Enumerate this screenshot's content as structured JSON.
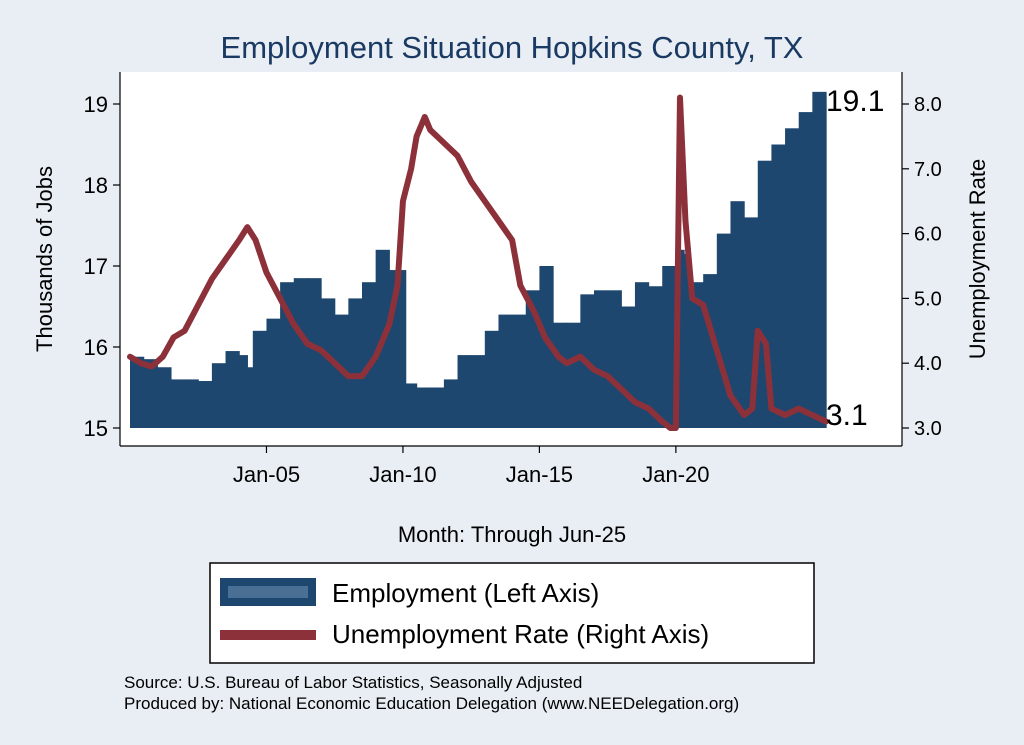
{
  "chart_data": {
    "type": "bar+line",
    "title": "Employment Situation Hopkins  County, TX",
    "xlabel": "Month: Through Jun-25",
    "ylabel_left": "Thousands of Jobs",
    "ylabel_right": "Unemployment Rate",
    "x_ticks": [
      "Jan-05",
      "Jan-10",
      "Jan-15",
      "Jan-20"
    ],
    "x_tick_years": [
      2005,
      2010,
      2015,
      2020
    ],
    "x_range": [
      2000.0,
      2025.5
    ],
    "y_left_ticks": [
      "15",
      "16",
      "17",
      "18",
      "19"
    ],
    "y_left_range": [
      15,
      19.2
    ],
    "y_right_ticks": [
      "3.0",
      "4.0",
      "5.0",
      "6.0",
      "7.0",
      "8.0"
    ],
    "y_right_range": [
      3.0,
      8.0
    ],
    "end_label_employment": "19.1",
    "end_label_unemployment": "3.1",
    "colors": {
      "employment": "#1e4770",
      "unemployment": "#8c3139",
      "background": "#e8eef4",
      "title": "#1a3a63"
    },
    "series": [
      {
        "name": "Employment (Left Axis)",
        "kind": "bar",
        "points": [
          [
            2000.0,
            15.88
          ],
          [
            2000.5,
            15.85
          ],
          [
            2001.0,
            15.75
          ],
          [
            2001.5,
            15.6
          ],
          [
            2002.0,
            15.6
          ],
          [
            2002.5,
            15.58
          ],
          [
            2003.0,
            15.8
          ],
          [
            2003.5,
            15.95
          ],
          [
            2004.0,
            15.9
          ],
          [
            2004.3,
            15.75
          ],
          [
            2004.5,
            16.2
          ],
          [
            2005.0,
            16.35
          ],
          [
            2005.5,
            16.8
          ],
          [
            2006.0,
            16.85
          ],
          [
            2006.5,
            16.85
          ],
          [
            2007.0,
            16.6
          ],
          [
            2007.5,
            16.4
          ],
          [
            2008.0,
            16.6
          ],
          [
            2008.5,
            16.8
          ],
          [
            2009.0,
            17.2
          ],
          [
            2009.5,
            16.95
          ],
          [
            2009.9,
            16.95
          ],
          [
            2010.1,
            15.55
          ],
          [
            2010.5,
            15.5
          ],
          [
            2011.0,
            15.5
          ],
          [
            2011.5,
            15.6
          ],
          [
            2012.0,
            15.9
          ],
          [
            2012.5,
            15.9
          ],
          [
            2013.0,
            16.2
          ],
          [
            2013.5,
            16.4
          ],
          [
            2014.0,
            16.4
          ],
          [
            2014.5,
            16.7
          ],
          [
            2015.0,
            17.0
          ],
          [
            2015.5,
            16.3
          ],
          [
            2016.0,
            16.3
          ],
          [
            2016.5,
            16.65
          ],
          [
            2017.0,
            16.7
          ],
          [
            2017.5,
            16.7
          ],
          [
            2018.0,
            16.5
          ],
          [
            2018.5,
            16.8
          ],
          [
            2019.0,
            16.75
          ],
          [
            2019.5,
            17.0
          ],
          [
            2020.0,
            17.2
          ],
          [
            2020.3,
            17.15
          ],
          [
            2020.5,
            16.8
          ],
          [
            2021.0,
            16.9
          ],
          [
            2021.5,
            17.4
          ],
          [
            2022.0,
            17.8
          ],
          [
            2022.5,
            17.6
          ],
          [
            2023.0,
            18.3
          ],
          [
            2023.5,
            18.5
          ],
          [
            2024.0,
            18.7
          ],
          [
            2024.5,
            18.9
          ],
          [
            2025.0,
            19.15
          ],
          [
            2025.5,
            19.1
          ]
        ]
      },
      {
        "name": "Unemployment Rate (Right Axis)",
        "kind": "line",
        "points": [
          [
            2000.0,
            4.1
          ],
          [
            2000.4,
            4.0
          ],
          [
            2000.8,
            3.95
          ],
          [
            2001.2,
            4.1
          ],
          [
            2001.6,
            4.4
          ],
          [
            2002.0,
            4.5
          ],
          [
            2002.5,
            4.9
          ],
          [
            2003.0,
            5.3
          ],
          [
            2003.5,
            5.6
          ],
          [
            2004.0,
            5.9
          ],
          [
            2004.3,
            6.1
          ],
          [
            2004.6,
            5.9
          ],
          [
            2005.0,
            5.4
          ],
          [
            2005.5,
            5.0
          ],
          [
            2006.0,
            4.6
          ],
          [
            2006.5,
            4.3
          ],
          [
            2007.0,
            4.2
          ],
          [
            2007.5,
            4.0
          ],
          [
            2008.0,
            3.8
          ],
          [
            2008.5,
            3.8
          ],
          [
            2009.0,
            4.1
          ],
          [
            2009.5,
            4.6
          ],
          [
            2009.8,
            5.2
          ],
          [
            2010.0,
            6.5
          ],
          [
            2010.3,
            7.0
          ],
          [
            2010.5,
            7.5
          ],
          [
            2010.8,
            7.8
          ],
          [
            2011.0,
            7.6
          ],
          [
            2011.5,
            7.4
          ],
          [
            2012.0,
            7.2
          ],
          [
            2012.5,
            6.8
          ],
          [
            2013.0,
            6.5
          ],
          [
            2013.5,
            6.2
          ],
          [
            2014.0,
            5.9
          ],
          [
            2014.3,
            5.2
          ],
          [
            2014.8,
            4.8
          ],
          [
            2015.2,
            4.4
          ],
          [
            2015.7,
            4.1
          ],
          [
            2016.0,
            4.0
          ],
          [
            2016.5,
            4.1
          ],
          [
            2017.0,
            3.9
          ],
          [
            2017.5,
            3.8
          ],
          [
            2018.0,
            3.6
          ],
          [
            2018.5,
            3.4
          ],
          [
            2019.0,
            3.3
          ],
          [
            2019.5,
            3.1
          ],
          [
            2019.8,
            3.0
          ],
          [
            2020.0,
            3.0
          ],
          [
            2020.15,
            8.1
          ],
          [
            2020.35,
            6.2
          ],
          [
            2020.6,
            5.0
          ],
          [
            2021.0,
            4.9
          ],
          [
            2021.5,
            4.2
          ],
          [
            2022.0,
            3.5
          ],
          [
            2022.5,
            3.2
          ],
          [
            2022.8,
            3.3
          ],
          [
            2023.0,
            4.5
          ],
          [
            2023.3,
            4.3
          ],
          [
            2023.5,
            3.3
          ],
          [
            2024.0,
            3.2
          ],
          [
            2024.5,
            3.3
          ],
          [
            2025.0,
            3.2
          ],
          [
            2025.5,
            3.1
          ]
        ]
      }
    ]
  },
  "source_line": "Source: U.S. Bureau of Labor Statistics, Seasonally Adjusted",
  "produced_by_line": "Produced by: National Economic Education Delegation (www.NEEDelegation.org)"
}
